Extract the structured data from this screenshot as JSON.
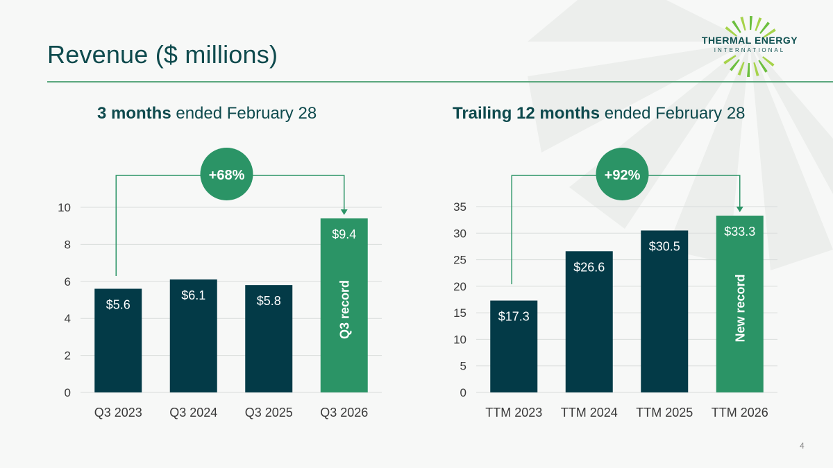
{
  "title": "Revenue ($ millions)",
  "page_number": "4",
  "logo": {
    "name": "THERMAL ENERGY",
    "sub": "INTERNATIONAL"
  },
  "colors": {
    "dark_bar": "#033a47",
    "record_bar": "#2b9466",
    "text": "#0e4a4d",
    "accent": "#2b9466"
  },
  "left_subtitle": {
    "bold": "3 months",
    "rest": " ended February 28"
  },
  "right_subtitle": {
    "bold": "Trailing 12 months",
    "rest": " ended February 28"
  },
  "chart_data": [
    {
      "type": "bar",
      "categories": [
        "Q3 2023",
        "Q3 2024",
        "Q3 2025",
        "Q3 2026"
      ],
      "values": [
        5.6,
        6.1,
        5.8,
        9.4
      ],
      "data_labels": [
        "$5.6",
        "$6.1",
        "$5.8",
        "$9.4"
      ],
      "highlight_index": 3,
      "highlight_label": "Q3 record",
      "growth_badge": "+68%",
      "ylim": [
        0,
        10
      ],
      "yticks": [
        0,
        2,
        4,
        6,
        8,
        10
      ],
      "grid": true
    },
    {
      "type": "bar",
      "categories": [
        "TTM 2023",
        "TTM 2024",
        "TTM 2025",
        "TTM 2026"
      ],
      "values": [
        17.3,
        26.6,
        30.5,
        33.3
      ],
      "data_labels": [
        "$17.3",
        "$26.6",
        "$30.5",
        "$33.3"
      ],
      "highlight_index": 3,
      "highlight_label": "New record",
      "growth_badge": "+92%",
      "ylim": [
        0,
        35
      ],
      "yticks": [
        0,
        5,
        10,
        15,
        20,
        25,
        30,
        35
      ],
      "grid": true
    }
  ]
}
